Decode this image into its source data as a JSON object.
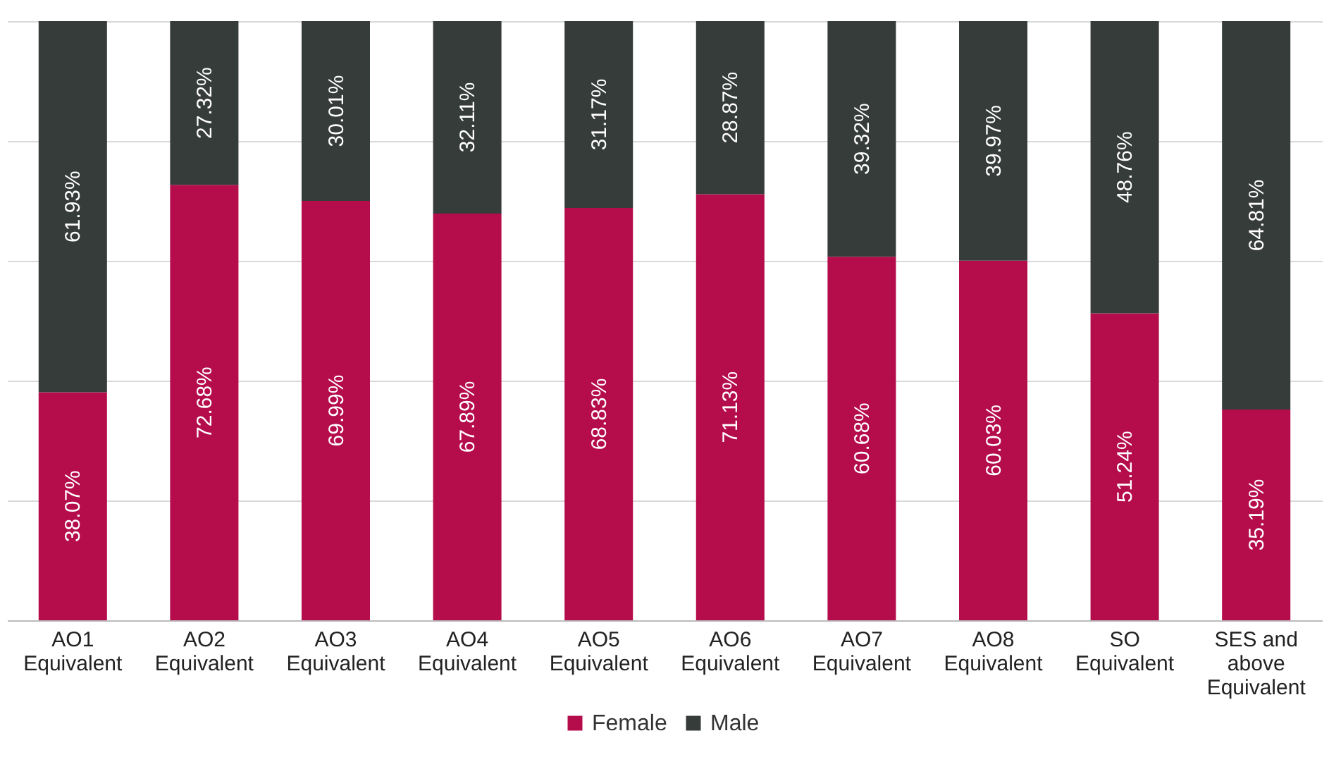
{
  "chart_data": {
    "type": "bar",
    "stacked": true,
    "categories": [
      "AO1 Equivalent",
      "AO2 Equivalent",
      "AO3 Equivalent",
      "AO4 Equivalent",
      "AO5 Equivalent",
      "AO6 Equivalent",
      "AO7 Equivalent",
      "AO8 Equivalent",
      "SO Equivalent",
      "SES and above Equivalent"
    ],
    "series": [
      {
        "name": "Female",
        "color": "#b50c4c",
        "values": [
          38.07,
          72.68,
          69.99,
          67.89,
          68.83,
          71.13,
          60.68,
          60.03,
          51.24,
          35.19
        ],
        "value_labels": [
          "38.07%",
          "72.68%",
          "69.99%",
          "67.89%",
          "68.83%",
          "71.13%",
          "60.68%",
          "60.03%",
          "51.24%",
          "35.19%"
        ]
      },
      {
        "name": "Male",
        "color": "#363c39",
        "values": [
          61.93,
          27.32,
          30.01,
          32.11,
          31.17,
          28.87,
          39.32,
          39.97,
          48.76,
          64.81
        ],
        "value_labels": [
          "61.93%",
          "27.32%",
          "30.01%",
          "32.11%",
          "31.17%",
          "28.87%",
          "39.32%",
          "39.97%",
          "48.76%",
          "64.81%"
        ]
      }
    ],
    "tick_labels": "x",
    "grid": "y",
    "legend": "bottom"
  }
}
